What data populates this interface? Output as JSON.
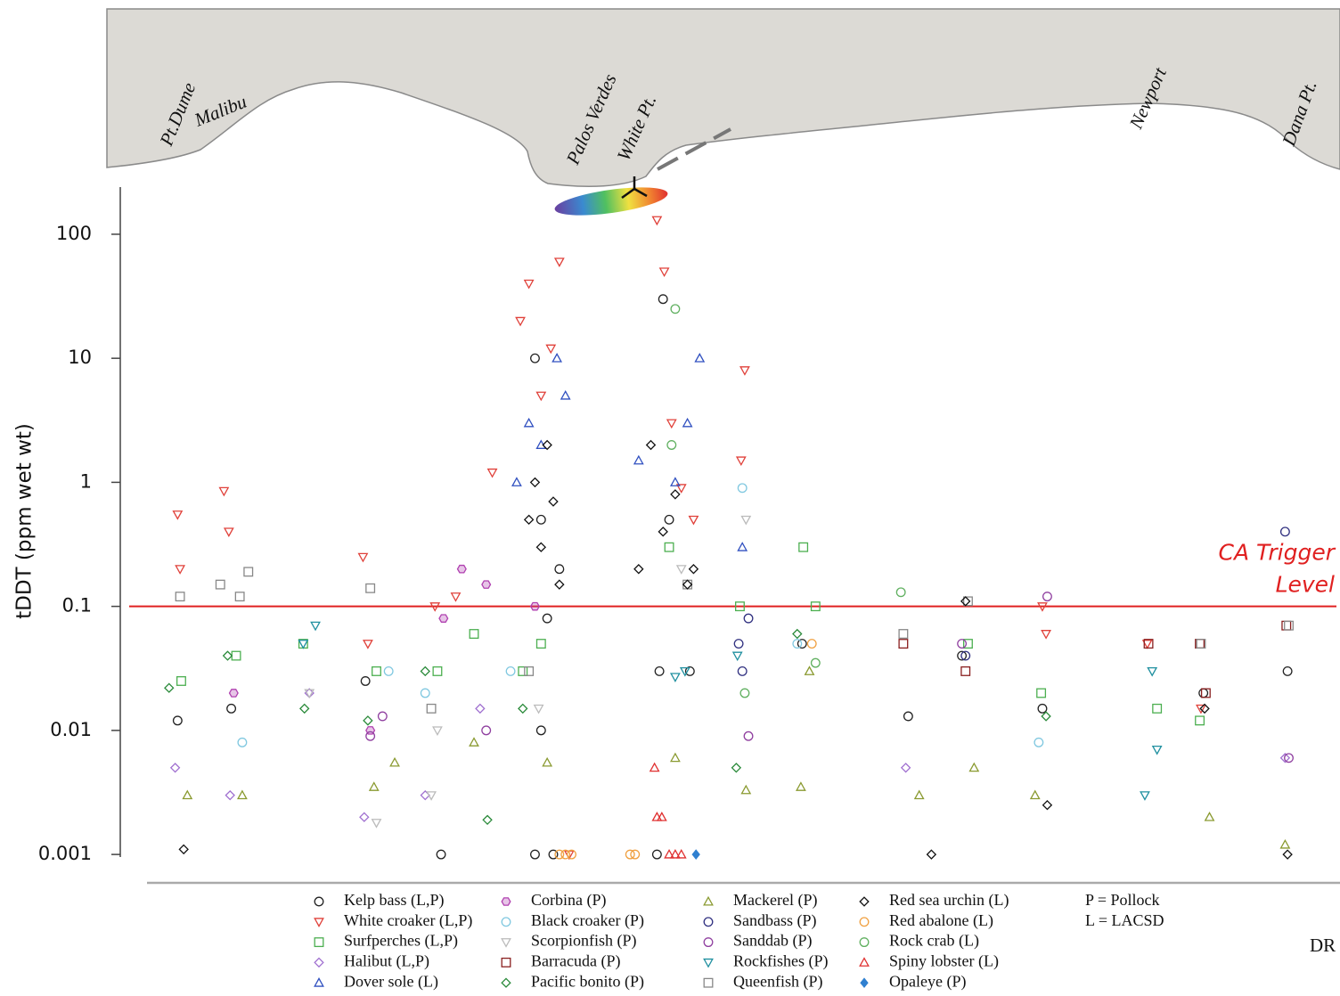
{
  "chart_data": {
    "type": "scatter",
    "ylabel": "tDDT (ppm wet wt)",
    "yscale": "log",
    "ylim": [
      0.0006,
      240
    ],
    "yticks": [
      0.001,
      0.01,
      0.1,
      1,
      10,
      100
    ],
    "xlim": [
      0,
      100
    ],
    "places": [
      "Pt.Dume",
      "Malibu",
      "Palos Verdes",
      "White Pt.",
      "Newport",
      "Dana Pt."
    ],
    "trigger_level": 0.1,
    "trigger_color": "#e02020",
    "trigger_label": [
      "CA Trigger",
      "Level"
    ],
    "legend_notes": [
      "P = Pollock",
      "L = LACSD"
    ],
    "annotations": [
      "DR"
    ],
    "series": [
      {
        "name": "Kelp bass (L,P)",
        "marker": "circle",
        "color": "#222222",
        "x": [
          4.7,
          9.1,
          20.1,
          26.3,
          34,
          34.5,
          35,
          44,
          44.5,
          45,
          46.7,
          36,
          55.9,
          64.6,
          69,
          75.6,
          88.8,
          95.7,
          34,
          34.5,
          35.5,
          44.2
        ],
        "values": [
          0.012,
          0.015,
          0.025,
          0.001,
          0.001,
          0.5,
          0.08,
          0.001,
          30,
          0.5,
          0.03,
          0.2,
          0.05,
          0.013,
          0.04,
          0.015,
          0.02,
          0.03,
          10,
          0.01,
          0.001,
          0.03
        ]
      },
      {
        "name": "White croaker (L,P)",
        "marker": "tri-down",
        "color": "#e0413a",
        "x": [
          4.7,
          4.9,
          8.5,
          8.9,
          19.9,
          20.3,
          25.8,
          27.5,
          30.5,
          32.8,
          33.5,
          34.5,
          35.3,
          36,
          44,
          44.6,
          45.2,
          46,
          47,
          51.2,
          50.9,
          36.8,
          75.6,
          75.9,
          84.2,
          88.6
        ],
        "values": [
          0.55,
          0.2,
          0.85,
          0.4,
          0.25,
          0.05,
          0.1,
          0.12,
          1.2,
          20,
          40,
          5,
          12,
          60,
          130,
          50,
          3,
          0.9,
          0.5,
          8,
          1.5,
          0.001,
          0.1,
          0.06,
          0.05,
          0.015
        ]
      },
      {
        "name": "Surfperches (L,P)",
        "marker": "square",
        "color": "#4caf50",
        "x": [
          5,
          9.5,
          15,
          21,
          26,
          29,
          33,
          34.5,
          45,
          50.8,
          56,
          57,
          69.5,
          75.5,
          85,
          88.5
        ],
        "values": [
          0.025,
          0.04,
          0.05,
          0.03,
          0.03,
          0.06,
          0.03,
          0.05,
          0.3,
          0.1,
          0.3,
          0.1,
          0.05,
          0.02,
          0.015,
          0.012
        ]
      },
      {
        "name": "Halibut (L,P)",
        "marker": "diamond",
        "color": "#a070d0",
        "x": [
          4.5,
          9,
          15.5,
          20,
          25,
          29.5,
          64.4,
          95.5
        ],
        "values": [
          0.005,
          0.003,
          0.02,
          0.002,
          0.003,
          0.015,
          0.005,
          0.006
        ]
      },
      {
        "name": "Dover sole (L)",
        "marker": "tri-up",
        "color": "#3050c0",
        "x": [
          32.5,
          33.5,
          34.5,
          35.8,
          36.5,
          42.5,
          45.5,
          47.5,
          46.5,
          51
        ],
        "values": [
          1,
          3,
          2,
          10,
          5,
          1.5,
          1,
          10,
          3,
          0.3
        ]
      },
      {
        "name": "Corbina (P)",
        "marker": "hexagon",
        "color": "#b040b0",
        "x": [
          9.3,
          20.5,
          26.5,
          28,
          30,
          34
        ],
        "values": [
          0.02,
          0.01,
          0.08,
          0.2,
          0.15,
          0.1
        ]
      },
      {
        "name": "Black croaker (P)",
        "marker": "circle",
        "color": "#80c8e0",
        "x": [
          10,
          22,
          25,
          32,
          51,
          55.5,
          75.3
        ],
        "values": [
          0.008,
          0.03,
          0.02,
          0.03,
          0.9,
          0.05,
          0.008
        ]
      },
      {
        "name": "Scorpionfish (P)",
        "marker": "tri-down",
        "color": "#bbbbbb",
        "x": [
          15.5,
          21,
          25.5,
          26,
          34.3,
          46,
          51.3
        ],
        "values": [
          0.02,
          0.0018,
          0.003,
          0.01,
          0.015,
          0.2,
          0.5
        ]
      },
      {
        "name": "Barracuda (P)",
        "marker": "square",
        "color": "#8a2020",
        "x": [
          64.2,
          69.3,
          84.3,
          88.5,
          89,
          95.6
        ],
        "values": [
          0.05,
          0.03,
          0.05,
          0.05,
          0.02,
          0.07
        ]
      },
      {
        "name": "Pacific bonito (P)",
        "marker": "diamond",
        "color": "#2a8a3a",
        "x": [
          4,
          8.8,
          15.1,
          20.3,
          25,
          30.1,
          33,
          50.5,
          55.5,
          75.9
        ],
        "values": [
          0.022,
          0.04,
          0.015,
          0.012,
          0.03,
          0.0019,
          0.015,
          0.005,
          0.06,
          0.013
        ]
      },
      {
        "name": "Mackerel (P)",
        "marker": "tri-up",
        "color": "#8a9a30",
        "x": [
          5.5,
          10,
          20.8,
          22.5,
          29,
          35,
          45.5,
          51.3,
          55.8,
          56.5,
          65.5,
          70,
          75,
          89.3,
          95.5
        ],
        "values": [
          0.003,
          0.003,
          0.0035,
          0.0055,
          0.008,
          0.0055,
          0.006,
          0.0033,
          0.0035,
          0.03,
          0.003,
          0.005,
          0.003,
          0.002,
          0.0012
        ]
      },
      {
        "name": "Sandbass (P)",
        "marker": "circle",
        "color": "#303080",
        "x": [
          50.7,
          51,
          51.5,
          69.3,
          95.5
        ],
        "values": [
          0.05,
          0.03,
          0.08,
          0.04,
          0.4
        ]
      },
      {
        "name": "Sanddab (P)",
        "marker": "circle",
        "color": "#9040a0",
        "x": [
          20.5,
          21.5,
          30,
          51.5,
          69,
          76,
          95.8
        ],
        "values": [
          0.009,
          0.013,
          0.01,
          0.009,
          0.05,
          0.12,
          0.006
        ]
      },
      {
        "name": "Rockfishes (P)",
        "marker": "tri-down",
        "color": "#2090a0",
        "x": [
          15,
          16,
          45.5,
          46.3,
          50.6,
          84,
          84.6,
          85
        ],
        "values": [
          0.05,
          0.07,
          0.027,
          0.03,
          0.04,
          0.003,
          0.03,
          0.007
        ]
      },
      {
        "name": "Queenfish (P)",
        "marker": "square",
        "color": "#888888",
        "x": [
          4.9,
          8.2,
          9.8,
          10.5,
          20.5,
          25.5,
          33.5,
          46.5,
          64.2,
          69.5,
          88.6,
          95.8
        ],
        "values": [
          0.12,
          0.15,
          0.12,
          0.19,
          0.14,
          0.015,
          0.03,
          0.15,
          0.06,
          0.11,
          0.05,
          0.07
        ]
      },
      {
        "name": "Red sea urchin (L)",
        "marker": "diamond",
        "color": "#111111",
        "x": [
          5.2,
          33.5,
          34,
          34.5,
          35,
          35.5,
          36,
          42.5,
          43.5,
          44.5,
          45.5,
          46.5,
          47,
          66.5,
          69.3,
          76,
          88.9,
          95.7
        ],
        "values": [
          0.0011,
          0.5,
          1,
          0.3,
          2,
          0.7,
          0.15,
          0.2,
          2,
          0.4,
          0.8,
          0.15,
          0.2,
          0.001,
          0.11,
          0.0025,
          0.015,
          0.001
        ]
      },
      {
        "name": "Red abalone (L)",
        "marker": "circle",
        "color": "#f0a040",
        "x": [
          36,
          36.5,
          37,
          41.8,
          42.2,
          56.7
        ],
        "values": [
          0.001,
          0.001,
          0.001,
          0.001,
          0.001,
          0.05
        ]
      },
      {
        "name": "Rock crab (L)",
        "marker": "circle",
        "color": "#60b060",
        "x": [
          45.2,
          45.5,
          64,
          51.2,
          57
        ],
        "values": [
          2,
          25,
          0.13,
          0.02,
          0.035
        ]
      },
      {
        "name": "Spiny lobster (L)",
        "marker": "tri-up",
        "color": "#e03030",
        "x": [
          43.8,
          44.4,
          45.5,
          46,
          45,
          44
        ],
        "values": [
          0.005,
          0.002,
          0.001,
          0.001,
          0.001,
          0.002
        ]
      },
      {
        "name": "Opaleye (P)",
        "marker": "diamond-filled",
        "color": "#3080d0",
        "x": [
          47.2
        ],
        "values": [
          0.001
        ]
      }
    ]
  }
}
